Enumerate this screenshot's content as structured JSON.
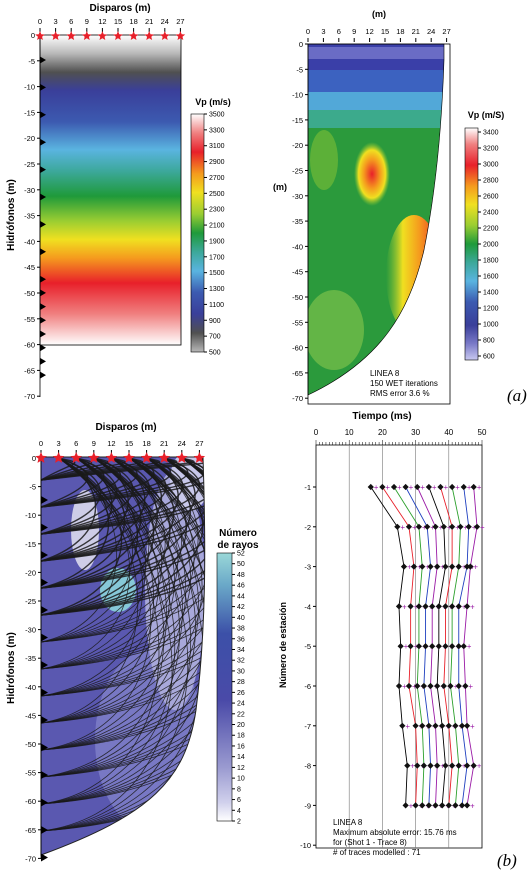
{
  "figure": {
    "label_a": "(a)",
    "label_b": "(b)"
  },
  "panel_initial": {
    "title": "Disparos (m)",
    "ylabel": "Hidrófonos (m)",
    "xticks": [
      "0",
      "3",
      "6",
      "9",
      "12",
      "15",
      "18",
      "21",
      "24",
      "27"
    ],
    "yticks": [
      "0",
      "-5",
      "-10",
      "-15",
      "-20",
      "-25",
      "-30",
      "-35",
      "-40",
      "-45",
      "-50",
      "-55",
      "-60",
      "-65",
      "-70"
    ],
    "colorbar": {
      "title": "Vp (m/s)",
      "ticks": [
        "3500",
        "3300",
        "3100",
        "2900",
        "2700",
        "2500",
        "2300",
        "2100",
        "1900",
        "1700",
        "1500",
        "1300",
        "1100",
        "900",
        "700",
        "500"
      ]
    }
  },
  "panel_tomo": {
    "title": "(m)",
    "ylabel": "(m)",
    "xticks": [
      "0",
      "3",
      "6",
      "9",
      "12",
      "15",
      "18",
      "21",
      "24",
      "27"
    ],
    "yticks": [
      "0",
      "-5",
      "-10",
      "-15",
      "-20",
      "-25",
      "-30",
      "-35",
      "-40",
      "-45",
      "-50",
      "-55",
      "-60",
      "-65",
      "-70"
    ],
    "colorbar": {
      "title": "Vp (m/S)",
      "ticks": [
        "3400",
        "3200",
        "3000",
        "2800",
        "2600",
        "2400",
        "2200",
        "2000",
        "1800",
        "1600",
        "1400",
        "1200",
        "1000",
        "800",
        "600"
      ]
    },
    "note": [
      "LINEA 8",
      "150 WET iterations",
      "RMS error 3.6 %"
    ]
  },
  "panel_rays": {
    "title": "Disparos (m)",
    "ylabel": "Hidrófonos (m)",
    "xticks": [
      "0",
      "3",
      "6",
      "9",
      "12",
      "15",
      "18",
      "21",
      "24",
      "27"
    ],
    "yticks": [
      "0",
      "-5",
      "-10",
      "-15",
      "-20",
      "-25",
      "-30",
      "-35",
      "-40",
      "-45",
      "-50",
      "-55",
      "-60",
      "-65",
      "-70"
    ],
    "colorbar": {
      "title_line1": "Número",
      "title_line2": "de rayos",
      "ticks": [
        "52",
        "50",
        "48",
        "46",
        "44",
        "42",
        "40",
        "38",
        "36",
        "34",
        "32",
        "30",
        "28",
        "26",
        "24",
        "22",
        "20",
        "18",
        "16",
        "14",
        "12",
        "10",
        "8",
        "6",
        "4",
        "2"
      ]
    }
  },
  "panel_times": {
    "title": "Tiempo (ms)",
    "ylabel": "Número de estación",
    "xticks": [
      "0",
      "10",
      "20",
      "30",
      "40",
      "50"
    ],
    "yticks": [
      "-1",
      "-2",
      "-3",
      "-4",
      "-5",
      "-6",
      "-7",
      "-8",
      "-9",
      "-10"
    ],
    "note": [
      "LINEA 8",
      "Maximum absolute error: 15.76 ms",
      "for (Shot 1 - Trace 8)",
      "# of traces modelled : 71"
    ]
  },
  "colors": {
    "shot_marker": "#e8202a",
    "receiver_marker": "#000000",
    "line_colors": [
      "#000000",
      "#e8202a",
      "#2ca02c",
      "#1f3fbf",
      "#9a1aa6"
    ]
  }
}
